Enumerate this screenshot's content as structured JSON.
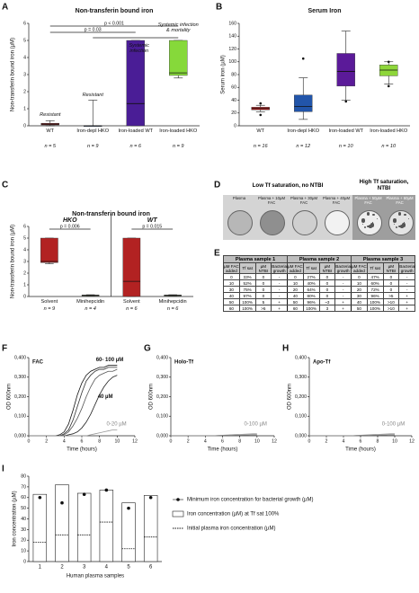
{
  "chart_data": [
    {
      "panel": "A",
      "type": "box",
      "title": "Non-transferin bound iron",
      "ylabel": "Non-transferin bound iron (µM)",
      "ylim": [
        0,
        6
      ],
      "yticks": [
        0,
        1,
        2,
        3,
        4,
        5,
        6
      ],
      "categories": [
        "WT",
        "Iron-depl HKO",
        "Iron-loaded WT",
        "Iron-loaded HKO"
      ],
      "n_labels": [
        "n = 5",
        "n = 9",
        "n = 6",
        "n = 9"
      ],
      "colors": [
        "#8b1a1a",
        "#2a4f9a",
        "#4a1d96",
        "#86d93a"
      ],
      "boxes": [
        {
          "min": 0,
          "q1": 0.05,
          "median": 0.1,
          "q3": 0.15,
          "max": 0.3,
          "outliers": []
        },
        {
          "min": 0,
          "q1": 0,
          "median": 0,
          "q3": 0,
          "max": 1.5,
          "outliers": []
        },
        {
          "min": 0,
          "q1": 0,
          "median": 1.3,
          "q3": 5,
          "max": 5,
          "outliers": []
        },
        {
          "min": 2.8,
          "q1": 2.95,
          "median": 3.1,
          "q3": 5,
          "max": 5,
          "outliers": []
        }
      ],
      "annotations": [
        "Resistant",
        "Resistant",
        "Systemic infection",
        "Systemic infection & mortality"
      ],
      "p_labels": [
        "p = 0.03",
        "p < 0.001"
      ]
    },
    {
      "panel": "B",
      "type": "box",
      "title": "Serum Iron",
      "ylabel": "Serum iron (µM)",
      "ylim": [
        0,
        160
      ],
      "yticks": [
        0,
        20,
        40,
        60,
        80,
        100,
        120,
        140,
        160
      ],
      "categories": [
        "WT",
        "Iron-depl HKO",
        "Iron-loaded WT",
        "Iron-loaded HKO"
      ],
      "n_labels": [
        "n = 16",
        "n = 12",
        "n = 10",
        "n = 10"
      ],
      "colors": [
        "#b22222",
        "#2255aa",
        "#5b1a99",
        "#8ed63a"
      ],
      "boxes": [
        {
          "min": 22,
          "q1": 25,
          "median": 27,
          "q3": 29,
          "max": 32,
          "outliers": [
            17,
            35
          ]
        },
        {
          "min": 10,
          "q1": 22,
          "median": 30,
          "q3": 48,
          "max": 75,
          "outliers": [
            105
          ]
        },
        {
          "min": 40,
          "q1": 62,
          "median": 85,
          "q3": 113,
          "max": 148,
          "outliers": [
            38
          ]
        },
        {
          "min": 65,
          "q1": 78,
          "median": 87,
          "q3": 95,
          "max": 100,
          "outliers": [
            62,
            100
          ]
        }
      ]
    },
    {
      "panel": "C",
      "type": "box",
      "title": "Non-transferin bound iron",
      "ylabel": "Non-transferin bound iron (µM)",
      "ylim": [
        0,
        6
      ],
      "yticks": [
        0,
        1,
        2,
        3,
        4,
        5,
        6
      ],
      "facets": [
        {
          "title": "HKO",
          "p_label": "p = 0.006",
          "categories": [
            "Solvent",
            "Minihepcidin"
          ],
          "n_labels": [
            "n = 9",
            "n = 4"
          ],
          "colors": [
            "#b22222",
            "#7ed321"
          ],
          "boxes": [
            {
              "min": 2.8,
              "q1": 2.9,
              "median": 3,
              "q3": 5,
              "max": 5,
              "outliers": []
            },
            {
              "min": 0.05,
              "q1": 0.08,
              "median": 0.1,
              "q3": 0.12,
              "max": 0.15,
              "outliers": []
            }
          ]
        },
        {
          "title": "WT",
          "p_label": "p = 0.015",
          "categories": [
            "Solvent",
            "Minihepcidin"
          ],
          "n_labels": [
            "n = 6",
            "n = 6"
          ],
          "colors": [
            "#b22222",
            "#7ed321"
          ],
          "boxes": [
            {
              "min": 0,
              "q1": 0,
              "median": 1.3,
              "q3": 5,
              "max": 5,
              "outliers": []
            },
            {
              "min": 0.05,
              "q1": 0.08,
              "median": 0.1,
              "q3": 0.12,
              "max": 0.15,
              "outliers": []
            }
          ]
        }
      ]
    },
    {
      "panel": "F",
      "type": "line",
      "label": "FAC",
      "xlabel": "Time (hours)",
      "ylabel": "OD 600nm",
      "xlim": [
        0,
        12
      ],
      "xticks": [
        0,
        2,
        4,
        6,
        8,
        10,
        12
      ],
      "ylim": [
        0,
        0.4
      ],
      "yticks": [
        {
          "value": 0,
          "label": "0,000"
        },
        {
          "value": 0.1,
          "label": "0,100"
        },
        {
          "value": 0.2,
          "label": "0,200"
        },
        {
          "value": 0.3,
          "label": "0,300"
        },
        {
          "value": 0.4,
          "label": "0,400"
        }
      ],
      "x": [
        0,
        0.5,
        1,
        1.5,
        2,
        2.5,
        3,
        3.5,
        4,
        4.5,
        5,
        5.5,
        6,
        6.5,
        7,
        7.5,
        8,
        8.5,
        9,
        9.5,
        10
      ],
      "series": [
        {
          "color": "#111111",
          "values": [
            0,
            0,
            0,
            0,
            0,
            0,
            0,
            0.005,
            0.02,
            0.06,
            0.13,
            0.21,
            0.27,
            0.31,
            0.33,
            0.34,
            0.35,
            0.35,
            0.36,
            0.36,
            0.36
          ]
        },
        {
          "color": "#333333",
          "values": [
            0,
            0,
            0,
            0,
            0,
            0,
            0,
            0,
            0.01,
            0.03,
            0.08,
            0.15,
            0.22,
            0.28,
            0.31,
            0.33,
            0.34,
            0.34,
            0.35,
            0.35,
            0.35
          ]
        },
        {
          "color": "#555555",
          "values": [
            0,
            0,
            0,
            0,
            0,
            0,
            0,
            0,
            0.005,
            0.02,
            0.05,
            0.09,
            0.14,
            0.2,
            0.25,
            0.29,
            0.31,
            0.32,
            0.33,
            0.33,
            0.34
          ]
        },
        {
          "color": "#222222",
          "values": [
            0,
            0,
            0,
            0,
            0,
            0,
            0,
            0,
            0,
            0.005,
            0.01,
            0.02,
            0.04,
            0.07,
            0.11,
            0.16,
            0.21,
            0.25,
            0.28,
            0.3,
            0.31
          ]
        },
        {
          "color": "#999999",
          "values": [
            0,
            0,
            0,
            0,
            0,
            0,
            0,
            0,
            0,
            0,
            0,
            0,
            0,
            0,
            0.005,
            0.01,
            0.015,
            0.02,
            0.025,
            0.03,
            0.03
          ]
        }
      ],
      "annotations": [
        "60- 100 µM",
        "40 µM",
        "0-20 µM"
      ]
    },
    {
      "panel": "G",
      "type": "line",
      "label": "Holo-Tf",
      "xlabel": "Time (hours)",
      "ylabel": "OD 600nm",
      "xlim": [
        0,
        12
      ],
      "xticks": [
        0,
        2,
        4,
        6,
        8,
        10,
        12
      ],
      "ylim": [
        0,
        0.4
      ],
      "yticks": [
        {
          "value": 0,
          "label": "0,000"
        },
        {
          "value": 0.1,
          "label": "0,100"
        },
        {
          "value": 0.2,
          "label": "0,200"
        },
        {
          "value": 0.3,
          "label": "0,300"
        },
        {
          "value": 0.4,
          "label": "0,400"
        }
      ],
      "x": [
        0,
        0.5,
        1,
        1.5,
        2,
        2.5,
        3,
        3.5,
        4,
        4.5,
        5,
        5.5,
        6,
        6.5,
        7,
        7.5,
        8,
        8.5,
        9,
        9.5,
        10
      ],
      "series": [
        {
          "color": "#999999",
          "values": [
            0,
            0,
            0,
            0,
            0,
            0,
            0,
            0,
            0,
            0,
            0,
            0.002,
            0.003,
            0.004,
            0.005,
            0.006,
            0.007,
            0.008,
            0.009,
            0.01,
            0.01
          ]
        },
        {
          "color": "#777777",
          "values": [
            0,
            0,
            0,
            0,
            0,
            0,
            0,
            0,
            0,
            0,
            0,
            0,
            0.001,
            0.002,
            0.002,
            0.003,
            0.003,
            0.004,
            0.004,
            0.005,
            0.005
          ]
        }
      ],
      "annotations": [
        "0-100 µM"
      ]
    },
    {
      "panel": "H",
      "type": "line",
      "label": "Apo-Tf",
      "xlabel": "Time (hours)",
      "ylabel": "OD 600nm",
      "xlim": [
        0,
        12
      ],
      "xticks": [
        0,
        2,
        4,
        6,
        8,
        10,
        12
      ],
      "ylim": [
        0,
        0.4
      ],
      "yticks": [
        {
          "value": 0,
          "label": "0,000"
        },
        {
          "value": 0.1,
          "label": "0,100"
        },
        {
          "value": 0.2,
          "label": "0,200"
        },
        {
          "value": 0.3,
          "label": "0,300"
        },
        {
          "value": 0.4,
          "label": "0,400"
        }
      ],
      "x": [
        0,
        0.5,
        1,
        1.5,
        2,
        2.5,
        3,
        3.5,
        4,
        4.5,
        5,
        5.5,
        6,
        6.5,
        7,
        7.5,
        8,
        8.5,
        9,
        9.5,
        10
      ],
      "series": [
        {
          "color": "#999999",
          "values": [
            0,
            0,
            0,
            0,
            0,
            0,
            0,
            0,
            0,
            0,
            0,
            0.002,
            0.003,
            0.004,
            0.005,
            0.006,
            0.007,
            0.008,
            0.009,
            0.01,
            0.01
          ]
        },
        {
          "color": "#777777",
          "values": [
            0,
            0,
            0,
            0,
            0,
            0,
            0,
            0,
            0,
            0,
            0,
            0,
            0.001,
            0.002,
            0.002,
            0.003,
            0.003,
            0.004,
            0.004,
            0.005,
            0.005
          ]
        }
      ],
      "annotations": [
        "0-100 µM"
      ]
    },
    {
      "panel": "I",
      "type": "bar",
      "xlabel": "Human plasma samples",
      "ylabel": "Iron concentration (µM)",
      "ylim": [
        0,
        80
      ],
      "yticks": [
        0,
        10,
        20,
        30,
        40,
        50,
        60,
        70,
        80
      ],
      "categories": [
        "1",
        "2",
        "3",
        "4",
        "5",
        "6"
      ],
      "series": [
        {
          "name": "Minimum iron concentration for bacterial growth (µM)",
          "mark": "dot",
          "color": "#111111",
          "values": [
            60,
            55,
            63,
            67,
            50,
            60
          ]
        },
        {
          "name": "Iron concentration (µM) at Tf sat 100%",
          "mark": "bar",
          "color": "#ffffff",
          "values": [
            63,
            72,
            64,
            67,
            55,
            62
          ]
        },
        {
          "name": "Initial plasma iron concentration (µM)",
          "mark": "dash",
          "color": "#111111",
          "values": [
            18,
            25,
            25,
            37,
            12,
            23
          ]
        }
      ]
    }
  ],
  "panel_d": {
    "panel": "D",
    "headers": [
      "Low Tf saturation, no NTBI",
      "High Tf saturation, NTBI"
    ],
    "plates": [
      "Plasma",
      "Plasma + 10µM FAC",
      "Plasma + 30µM FAC",
      "Plasma + 40µM FAC",
      "Plasma + 50µM FAC",
      "Plasma + 60µM FAC"
    ]
  },
  "table_e": {
    "panel": "E",
    "groups": [
      "Plasma sample 1",
      "Plasma sample 2",
      "Plasma sample 3"
    ],
    "columns": [
      "µM FAC added",
      "Tf sat",
      "µM NTBI",
      "Bacterial growth"
    ],
    "rows": [
      [
        "0",
        "33%",
        "0",
        "-",
        "0",
        "27%",
        "0",
        "-",
        "0",
        "47%",
        "0",
        "-"
      ],
      [
        "10",
        "52%",
        "0",
        "-",
        "10",
        "40%",
        "0",
        "-",
        "10",
        "60%",
        "0",
        "-"
      ],
      [
        "30",
        "75%",
        "0",
        "-",
        "20",
        "64%",
        "0",
        "-",
        "20",
        "72%",
        "0",
        "-"
      ],
      [
        "40",
        "97%",
        "0",
        "-",
        "40",
        "80%",
        "0",
        "-",
        "30",
        "96%",
        ">5",
        "+"
      ],
      [
        "50",
        "100%",
        "5",
        "+",
        "50",
        "96%",
        "~3",
        "+",
        "40",
        "100%",
        ">10",
        "+"
      ],
      [
        "60",
        "100%",
        ">5",
        "+",
        "60",
        "100%",
        "3",
        "+",
        "50",
        "100%",
        ">10",
        "+"
      ]
    ]
  }
}
